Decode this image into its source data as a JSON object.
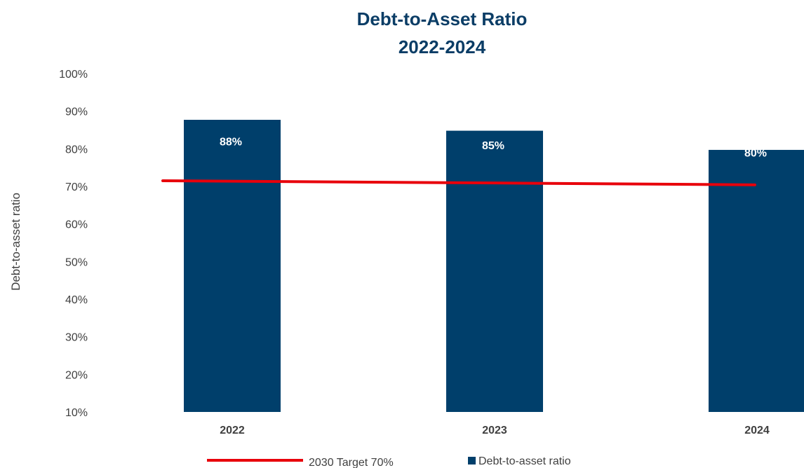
{
  "chart_data": {
    "type": "bar",
    "title_lines": [
      "Debt-to-Asset Ratio",
      "2022-2024"
    ],
    "xlabel": "",
    "ylabel": "Debt-to-asset ratio",
    "ylim": [
      0.1,
      1.0
    ],
    "yticks": [
      0.1,
      0.2,
      0.3,
      0.4,
      0.5,
      0.6,
      0.7,
      0.8,
      0.9,
      1.0
    ],
    "ytick_labels": [
      "10%",
      "20%",
      "30%",
      "40%",
      "50%",
      "60%",
      "70%",
      "80%",
      "90%",
      "100%"
    ],
    "categories": [
      "2022",
      "2023",
      "2024"
    ],
    "series": [
      {
        "name": "Debt-to-asset ratio",
        "type": "bar",
        "values": [
          0.877,
          0.848,
          0.797
        ],
        "data_labels": [
          "88%",
          "85%",
          "80%"
        ],
        "color": "#003f6b"
      },
      {
        "name": "2030 Target 70%",
        "type": "line",
        "values": [
          0.715,
          0.709,
          0.704
        ],
        "color": "#e8000b"
      }
    ],
    "grid": false,
    "legend_position": "bottom",
    "colors": {
      "title": "#0b3d66",
      "bar": "#003f6b",
      "target": "#e8000b",
      "data_label": "#ffffff",
      "axis_text": "#404040"
    }
  }
}
